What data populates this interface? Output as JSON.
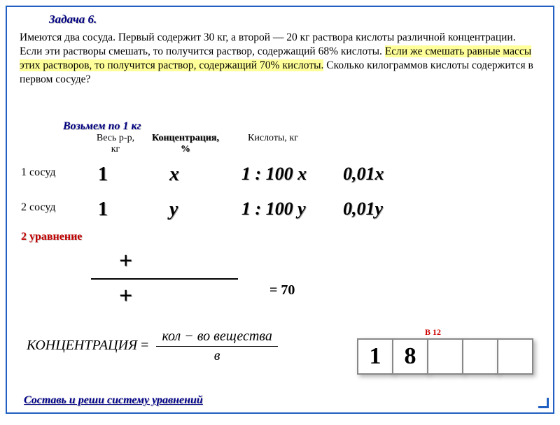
{
  "title": "Задача 6.",
  "problem_pre": "Имеются два сосуда. Первый содержит 30 кг, а второй  — 20 кг раствора кислоты различной концентрации. Если эти растворы смешать, то получится раствор, содержащий 68% кислоты. ",
  "problem_hl": "Если же смешать равные массы этих растворов, то получится раствор, содержащий 70% кислоты.",
  "problem_post": " Сколько килограммов кислоты содержится в первом сосуде?",
  "vozmem": "Возьмем по 1 кг",
  "col1a": "Весь р-р,",
  "col1b": "кг",
  "col2a": "Концентрация,",
  "col2b": "%",
  "col3": "Кислоты, кг",
  "row1label": "1 сосуд",
  "row2label": "2 сосуд",
  "r1c1": "1",
  "r2c1": "1",
  "r1c2": "x",
  "r2c2": "y",
  "r1c3": "1 : 100 x",
  "r2c3": "1 : 100 y",
  "r1c4": "0,01x",
  "r2c4": "0,01y",
  "eq2": "2 уравнение",
  "plus": "+",
  "eq70": "= 70",
  "formula_lhs": "КОНЦЕНТРАЦИЯ",
  "formula_num": "кол − во вещества",
  "formula_den": "в",
  "v12": "В 12",
  "ans1": "1",
  "ans2": "8",
  "bottom": "Составь и реши систему уравнений",
  "colors": {
    "frame": "#2060c0",
    "title": "#000080",
    "highlight": "#ffff99",
    "red": "#c00000"
  }
}
